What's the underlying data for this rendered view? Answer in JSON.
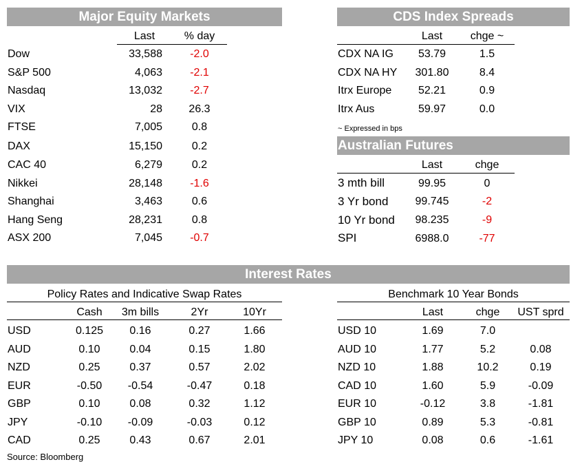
{
  "equity": {
    "title": "Major Equity Markets",
    "col_last": "Last",
    "col_day": "% day",
    "rows": [
      {
        "name": "Dow",
        "last": "33,588",
        "day": "-2.0",
        "neg": true
      },
      {
        "name": "S&P 500",
        "last": "4,063",
        "day": "-2.1",
        "neg": true
      },
      {
        "name": "Nasdaq",
        "last": "13,032",
        "day": "-2.7",
        "neg": true
      },
      {
        "name": "VIX",
        "last": "28",
        "day": "26.3",
        "neg": false
      },
      {
        "name": "FTSE",
        "last": "7,005",
        "day": "0.8",
        "neg": false
      },
      {
        "name": "DAX",
        "last": "15,150",
        "day": "0.2",
        "neg": false
      },
      {
        "name": "CAC 40",
        "last": "6,279",
        "day": "0.2",
        "neg": false
      },
      {
        "name": "Nikkei",
        "last": "28,148",
        "day": "-1.6",
        "neg": true
      },
      {
        "name": "Shanghai",
        "last": "3,463",
        "day": "0.6",
        "neg": false
      },
      {
        "name": "Hang Seng",
        "last": "28,231",
        "day": "0.8",
        "neg": false
      },
      {
        "name": "ASX 200",
        "last": "7,045",
        "day": "-0.7",
        "neg": true
      }
    ]
  },
  "cds": {
    "title": "CDS Index Spreads",
    "col_last": "Last",
    "col_chge": "chge ~",
    "rows": [
      {
        "name": "CDX NA IG",
        "last": "53.79",
        "chge": "1.5"
      },
      {
        "name": "CDX NA HY",
        "last": "301.80",
        "chge": "8.4"
      },
      {
        "name": "Itrx Europe",
        "last": "52.21",
        "chge": "0.9"
      },
      {
        "name": "Itrx Aus",
        "last": "59.97",
        "chge": "0.0"
      }
    ],
    "note": "~ Expressed in bps"
  },
  "futures": {
    "title": "Australian Futures",
    "col_last": "Last",
    "col_chge": "chge",
    "rows": [
      {
        "name": "3 mth bill",
        "last": "99.95",
        "chge": "0",
        "neg": false
      },
      {
        "name": "3 Yr bond",
        "last": "99.745",
        "chge": "-2",
        "neg": true
      },
      {
        "name": "10 Yr bond",
        "last": "98.235",
        "chge": "-9",
        "neg": true
      },
      {
        "name": "SPI",
        "last": "6988.0",
        "chge": "-77",
        "neg": true
      }
    ]
  },
  "rates": {
    "title": "Interest Rates",
    "policy": {
      "heading": "Policy Rates and Indicative Swap Rates",
      "cols": [
        "Cash",
        "3m bills",
        "2Yr",
        "10Yr"
      ],
      "rows": [
        {
          "name": "USD",
          "vals": [
            "0.125",
            "0.16",
            "0.27",
            "1.66"
          ]
        },
        {
          "name": "AUD",
          "vals": [
            "0.10",
            "0.04",
            "0.15",
            "1.80"
          ]
        },
        {
          "name": "NZD",
          "vals": [
            "0.25",
            "0.37",
            "0.57",
            "2.02"
          ]
        },
        {
          "name": "EUR",
          "vals": [
            "-0.50",
            "-0.54",
            "-0.47",
            "0.18"
          ]
        },
        {
          "name": "GBP",
          "vals": [
            "0.10",
            "0.08",
            "0.32",
            "1.12"
          ]
        },
        {
          "name": "JPY",
          "vals": [
            "-0.10",
            "-0.09",
            "-0.03",
            "0.12"
          ]
        },
        {
          "name": "CAD",
          "vals": [
            "0.25",
            "0.43",
            "0.67",
            "2.01"
          ]
        }
      ]
    },
    "bonds": {
      "heading": "Benchmark 10 Year Bonds",
      "cols": [
        "Last",
        "chge",
        "UST sprd"
      ],
      "rows": [
        {
          "name": "USD 10",
          "vals": [
            "1.69",
            "7.0",
            ""
          ]
        },
        {
          "name": "AUD 10",
          "vals": [
            "1.77",
            "5.2",
            "0.08"
          ]
        },
        {
          "name": "NZD 10",
          "vals": [
            "1.88",
            "10.2",
            "0.19"
          ]
        },
        {
          "name": "CAD 10",
          "vals": [
            "1.60",
            "5.9",
            "-0.09"
          ]
        },
        {
          "name": "EUR 10",
          "vals": [
            "-0.12",
            "3.8",
            "-1.81"
          ]
        },
        {
          "name": "GBP 10",
          "vals": [
            "0.89",
            "5.3",
            "-0.81"
          ]
        },
        {
          "name": "JPY 10",
          "vals": [
            "0.08",
            "0.6",
            "-1.61"
          ]
        }
      ]
    },
    "source": "Source: Bloomberg"
  }
}
